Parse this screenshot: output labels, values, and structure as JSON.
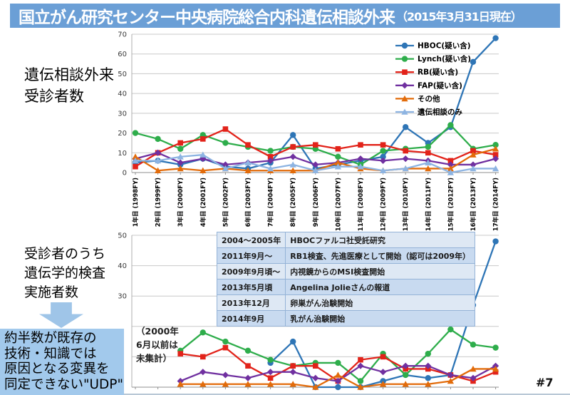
{
  "slide": {
    "title": "国立がん研究センター中央病院総合内科遺伝相談外来",
    "title_suffix": "（2015年3月31日現在）",
    "page_number": "#7",
    "title_bar_color": "#6b9fd6"
  },
  "left_panel": {
    "top_chart_label_lines": [
      "遺伝相談外来",
      "受診者数"
    ],
    "bottom_chart_label_lines": [
      "受診者のうち",
      "遺伝学的検査",
      "実施者数"
    ],
    "udp_box_lines": [
      "約半数が既存の",
      "技術・知識では",
      "原因となる変異を",
      "同定できない\"UDP\""
    ],
    "arrow_color": "#9fc5e8",
    "udp_box_color": "#a2c9ec"
  },
  "annotations": {
    "uncollected_note_lines": [
      "（2000年",
      "6月以前は",
      "未集計）"
    ]
  },
  "events_table": {
    "rows": [
      {
        "date": "2004～2005年",
        "event": "HBOCファルコ社受託研究"
      },
      {
        "date": "2011年9月～",
        "event": "RB1検査、先進医療として開始（認可は2009年）"
      },
      {
        "date": "2009年9月頃～",
        "event": "内視鏡からのMSI検査開始"
      },
      {
        "date": "2013年5月頃",
        "event": "Angelina Jolieさんの報道"
      },
      {
        "date": "2013年12月",
        "event": "卵巣がん治験開始"
      },
      {
        "date": "2014年9月",
        "event": "乳がん治験開始"
      }
    ]
  },
  "chart_data": [
    {
      "type": "line",
      "title": "遺伝相談外来受診者数",
      "categories": [
        "1年目 (1998FY)",
        "2年目 (1999FY)",
        "3年目 (2000FY)",
        "4年目 (2001FY)",
        "5年目 (2002FY)",
        "6年目 (2003FY)",
        "7年目 (2004FY)",
        "8年目 (2005FY)",
        "9年目 (2006FY)",
        "10年目 (2007FY)",
        "11年目 (2008FY)",
        "12年目 (2009FY)",
        "13年目 (2010FY)",
        "14年目 (2011FY)",
        "15年目 (2012FY)",
        "16年目 (2013FY)",
        "17年目 (2014FY)"
      ],
      "ylim": [
        0,
        70
      ],
      "yticks": [
        0,
        10,
        20,
        30,
        40,
        50,
        60,
        70
      ],
      "grid": true,
      "show_x_labels": true,
      "show_legend": true,
      "legend_position": "top-right",
      "series": [
        {
          "name": "HBOC(疑い含)",
          "color": "#2e75b6",
          "marker": "circle",
          "values": [
            5,
            6,
            4,
            7,
            3,
            2,
            5,
            19,
            2,
            4,
            6,
            8,
            23,
            15,
            23,
            56,
            68
          ]
        },
        {
          "name": "Lynch(疑い含)",
          "color": "#2ead4b",
          "marker": "circle",
          "values": [
            20,
            17,
            12,
            19,
            15,
            13,
            11,
            13,
            12,
            8,
            4,
            11,
            12,
            13,
            24,
            12,
            14
          ]
        },
        {
          "name": "RB(疑い含)",
          "color": "#e2231a",
          "marker": "square",
          "values": [
            3,
            10,
            15,
            17,
            22,
            14,
            8,
            13,
            14,
            12,
            14,
            14,
            11,
            10,
            6,
            11,
            9
          ]
        },
        {
          "name": "FAP(疑い含)",
          "color": "#7030a0",
          "marker": "diamond",
          "values": [
            7,
            10,
            5,
            7,
            4,
            5,
            6,
            8,
            4,
            5,
            7,
            6,
            7,
            6,
            4,
            4,
            7
          ]
        },
        {
          "name": "その他",
          "color": "#e26b0a",
          "marker": "triangle",
          "values": [
            8,
            1,
            2,
            1,
            2,
            1,
            1,
            1,
            1,
            5,
            2,
            1,
            2,
            2,
            2,
            9,
            12
          ]
        },
        {
          "name": "遺伝相談のみ",
          "color": "#8db4e2",
          "marker": "triangle",
          "values": [
            6,
            6,
            8,
            9,
            2,
            5,
            2,
            4,
            1,
            3,
            3,
            1,
            2,
            5,
            0,
            2,
            2
          ]
        }
      ]
    },
    {
      "type": "line",
      "title": "受診者のうち遺伝学的検査実施者数",
      "categories": [
        "1年目 (1998FY)",
        "2年目 (1999FY)",
        "3年目 (2000FY)",
        "4年目 (2001FY)",
        "5年目 (2002FY)",
        "6年目 (2003FY)",
        "7年目 (2004FY)",
        "8年目 (2005FY)",
        "9年目 (2006FY)",
        "10年目 (2007FY)",
        "11年目 (2008FY)",
        "12年目 (2009FY)",
        "13年目 (2010FY)",
        "14年目 (2011FY)",
        "15年目 (2012FY)",
        "16年目 (2013FY)",
        "17年目 (2014FY)"
      ],
      "ylim": [
        0,
        50
      ],
      "yticks": [
        0,
        10,
        20,
        30,
        40,
        50
      ],
      "ytick_labels_visible": [
        30,
        40,
        50
      ],
      "grid": true,
      "show_x_labels": false,
      "show_legend": false,
      "series": [
        {
          "name": "HBOC(疑い含)",
          "color": "#2e75b6",
          "marker": "circle",
          "values": [
            null,
            null,
            null,
            null,
            null,
            null,
            8,
            15,
            0,
            0,
            0,
            2,
            4,
            3,
            4,
            27,
            48
          ]
        },
        {
          "name": "Lynch(疑い含)",
          "color": "#2ead4b",
          "marker": "circle",
          "values": [
            null,
            null,
            12,
            18,
            15,
            12,
            9,
            7,
            8,
            8,
            2,
            11,
            4,
            11,
            19,
            14,
            13
          ]
        },
        {
          "name": "RB(疑い含)",
          "color": "#e2231a",
          "marker": "square",
          "values": [
            null,
            null,
            11,
            10,
            13,
            7,
            3,
            7,
            7,
            2,
            9,
            10,
            6,
            6,
            4,
            2,
            5
          ]
        },
        {
          "name": "FAP(疑い含)",
          "color": "#7030a0",
          "marker": "diamond",
          "values": [
            null,
            null,
            2,
            5,
            4,
            3,
            5,
            5,
            3,
            2,
            7,
            5,
            7,
            7,
            4,
            3,
            7
          ]
        },
        {
          "name": "その他",
          "color": "#e26b0a",
          "marker": "triangle",
          "values": [
            null,
            null,
            1,
            1,
            1,
            1,
            1,
            1,
            0,
            4,
            0,
            1,
            1,
            1,
            2,
            6,
            6
          ]
        }
      ]
    }
  ]
}
